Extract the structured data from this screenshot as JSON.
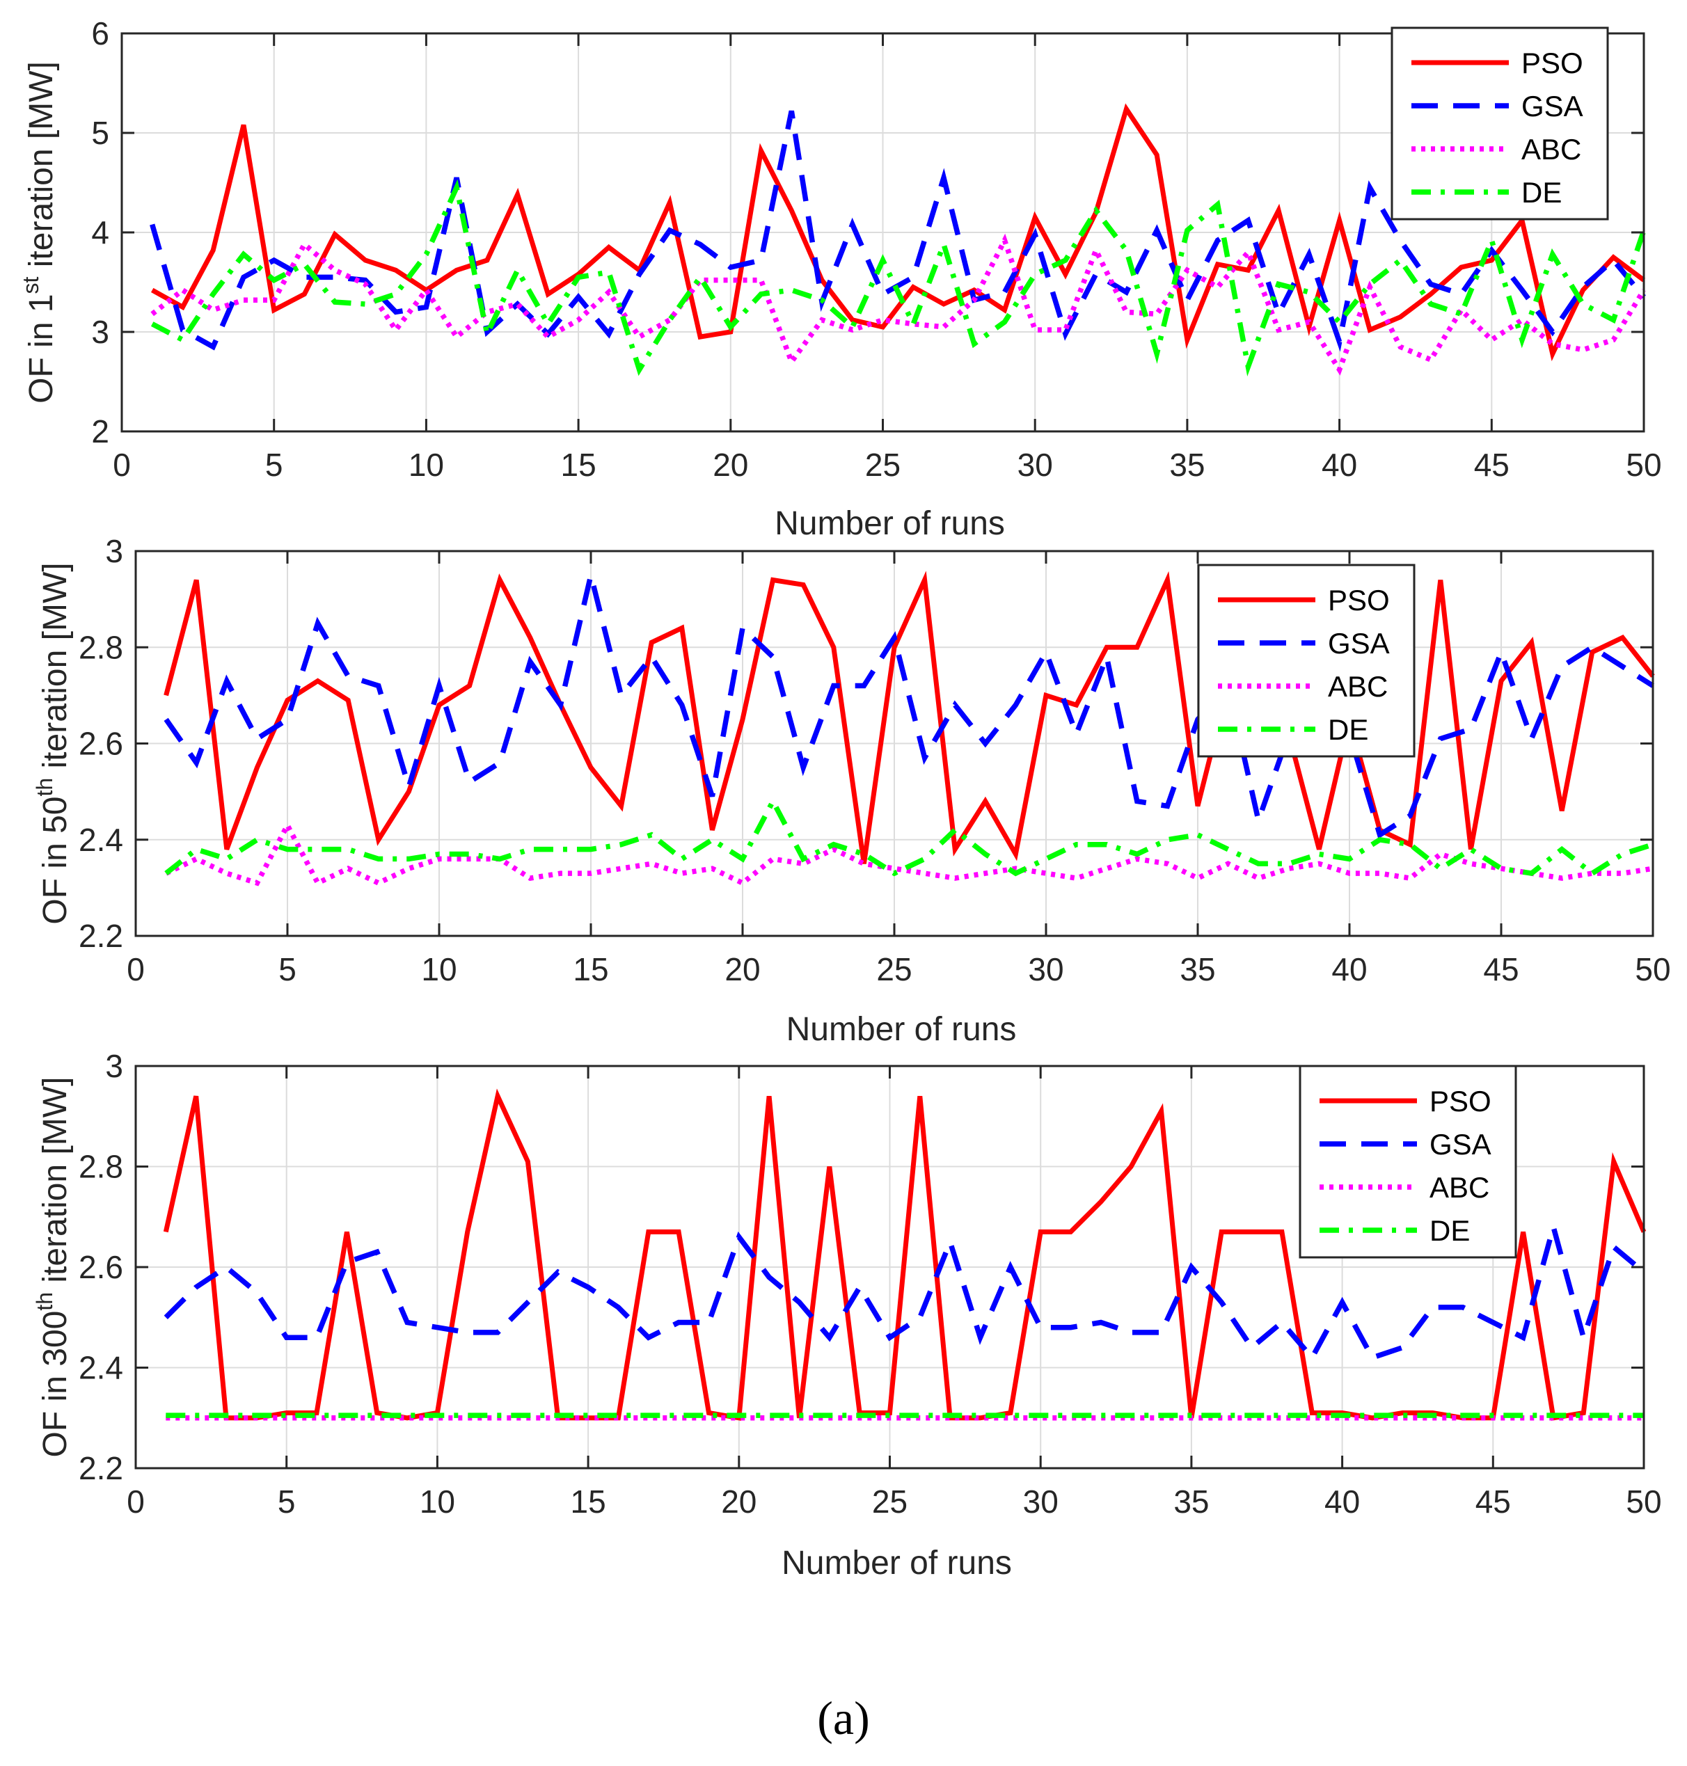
{
  "chart_data": [
    {
      "type": "line",
      "xlabel": "Number of runs",
      "ylabel": {
        "prefix": "OF in 1",
        "sup": "st",
        "suffix": " iteration [MW]"
      },
      "xlim": [
        0,
        50
      ],
      "ylim": [
        2,
        6
      ],
      "xticks": [
        0,
        5,
        10,
        15,
        20,
        25,
        30,
        35,
        40,
        45,
        50
      ],
      "yticks": [
        2,
        3,
        4,
        5,
        6
      ],
      "grid": true,
      "legend_position": "top-right",
      "series": [
        {
          "name": "PSO",
          "color": "#ff0000",
          "style": "solid",
          "values": [
            3.42,
            3.25,
            3.82,
            5.08,
            3.22,
            3.38,
            3.98,
            3.72,
            3.62,
            3.42,
            3.62,
            3.72,
            4.38,
            3.38,
            3.58,
            3.85,
            3.62,
            4.3,
            2.95,
            3.0,
            4.82,
            4.22,
            3.52,
            3.12,
            3.05,
            3.45,
            3.28,
            3.42,
            3.22,
            4.15,
            3.58,
            4.2,
            5.24,
            4.78,
            2.92,
            3.68,
            3.62,
            4.22,
            3.05,
            4.12,
            3.02,
            3.15,
            3.38,
            3.65,
            3.72,
            4.12,
            2.78,
            3.42,
            3.75,
            3.52
          ]
        },
        {
          "name": "GSA",
          "color": "#0000ff",
          "style": "dashed",
          "values": [
            4.08,
            3.02,
            2.85,
            3.55,
            3.72,
            3.55,
            3.55,
            3.52,
            3.2,
            3.25,
            4.55,
            3.0,
            3.28,
            2.98,
            3.35,
            2.98,
            3.58,
            4.02,
            3.88,
            3.65,
            3.72,
            5.22,
            3.3,
            4.08,
            3.38,
            3.55,
            4.55,
            3.32,
            3.4,
            3.98,
            2.98,
            3.58,
            3.4,
            4.02,
            3.32,
            3.92,
            4.12,
            3.18,
            3.78,
            2.9,
            4.45,
            3.92,
            3.48,
            3.38,
            3.82,
            3.42,
            3.0,
            3.45,
            3.72,
            3.35
          ]
        },
        {
          "name": "ABC",
          "color": "#ff00ff",
          "style": "dotted",
          "values": [
            3.18,
            3.42,
            3.22,
            3.32,
            3.32,
            3.88,
            3.62,
            3.48,
            3.02,
            3.42,
            2.95,
            3.2,
            3.28,
            2.95,
            3.12,
            3.4,
            2.95,
            3.12,
            3.52,
            3.52,
            3.52,
            2.7,
            3.12,
            3.02,
            3.12,
            3.08,
            3.05,
            3.32,
            3.92,
            3.02,
            3.02,
            3.82,
            3.2,
            3.18,
            3.62,
            3.45,
            3.8,
            3.02,
            3.1,
            2.62,
            3.45,
            2.85,
            2.72,
            3.22,
            2.92,
            3.12,
            2.88,
            2.82,
            2.92,
            3.42
          ]
        },
        {
          "name": "DE",
          "color": "#00ff00",
          "style": "dashdot",
          "values": [
            3.08,
            2.92,
            3.38,
            3.78,
            3.52,
            3.68,
            3.3,
            3.28,
            3.38,
            3.78,
            4.45,
            2.98,
            3.62,
            3.08,
            3.55,
            3.6,
            2.62,
            3.12,
            3.55,
            3.05,
            3.38,
            3.42,
            3.32,
            3.05,
            3.72,
            3.08,
            3.88,
            2.88,
            3.1,
            3.58,
            3.72,
            4.22,
            3.82,
            2.78,
            4.02,
            4.28,
            2.65,
            3.48,
            3.4,
            3.1,
            3.48,
            3.72,
            3.28,
            3.18,
            3.92,
            2.92,
            3.78,
            3.28,
            3.12,
            4.02
          ]
        }
      ]
    },
    {
      "type": "line",
      "xlabel": "Number of runs",
      "ylabel": {
        "prefix": "OF in 50",
        "sup": "th",
        "suffix": " iteration [MW]"
      },
      "xlim": [
        0,
        50
      ],
      "ylim": [
        2.2,
        3
      ],
      "xticks": [
        0,
        5,
        10,
        15,
        20,
        25,
        30,
        35,
        40,
        45,
        50
      ],
      "yticks": [
        2.2,
        2.4,
        2.6,
        2.8,
        3
      ],
      "grid": true,
      "legend_position": "top-right",
      "series": [
        {
          "name": "PSO",
          "color": "#ff0000",
          "style": "solid",
          "values": [
            2.7,
            2.94,
            2.38,
            2.55,
            2.69,
            2.73,
            2.69,
            2.4,
            2.5,
            2.68,
            2.72,
            2.94,
            2.82,
            2.68,
            2.55,
            2.47,
            2.81,
            2.84,
            2.42,
            2.65,
            2.94,
            2.93,
            2.8,
            2.35,
            2.8,
            2.94,
            2.38,
            2.48,
            2.37,
            2.7,
            2.68,
            2.8,
            2.8,
            2.94,
            2.47,
            2.72,
            2.65,
            2.62,
            2.38,
            2.65,
            2.42,
            2.39,
            2.94,
            2.38,
            2.73,
            2.81,
            2.46,
            2.79,
            2.82,
            2.74
          ]
        },
        {
          "name": "GSA",
          "color": "#0000ff",
          "style": "dashed",
          "values": [
            2.65,
            2.56,
            2.73,
            2.61,
            2.65,
            2.85,
            2.74,
            2.72,
            2.51,
            2.72,
            2.52,
            2.56,
            2.77,
            2.68,
            2.95,
            2.7,
            2.78,
            2.68,
            2.49,
            2.84,
            2.78,
            2.55,
            2.72,
            2.72,
            2.82,
            2.57,
            2.68,
            2.6,
            2.68,
            2.79,
            2.62,
            2.78,
            2.48,
            2.47,
            2.65,
            2.72,
            2.44,
            2.62,
            2.72,
            2.62,
            2.41,
            2.45,
            2.61,
            2.63,
            2.79,
            2.61,
            2.76,
            2.8,
            2.76,
            2.72
          ]
        },
        {
          "name": "ABC",
          "color": "#ff00ff",
          "style": "dotted",
          "values": [
            2.33,
            2.36,
            2.33,
            2.31,
            2.43,
            2.31,
            2.34,
            2.31,
            2.34,
            2.36,
            2.36,
            2.36,
            2.32,
            2.33,
            2.33,
            2.34,
            2.35,
            2.33,
            2.34,
            2.31,
            2.36,
            2.35,
            2.38,
            2.35,
            2.34,
            2.33,
            2.32,
            2.33,
            2.34,
            2.33,
            2.32,
            2.34,
            2.36,
            2.35,
            2.32,
            2.35,
            2.32,
            2.34,
            2.35,
            2.33,
            2.33,
            2.32,
            2.37,
            2.35,
            2.34,
            2.33,
            2.32,
            2.33,
            2.33,
            2.34
          ]
        },
        {
          "name": "DE",
          "color": "#00ff00",
          "style": "dashdot",
          "values": [
            2.33,
            2.38,
            2.36,
            2.4,
            2.38,
            2.38,
            2.38,
            2.36,
            2.36,
            2.37,
            2.37,
            2.36,
            2.38,
            2.38,
            2.38,
            2.39,
            2.41,
            2.36,
            2.4,
            2.36,
            2.48,
            2.36,
            2.39,
            2.37,
            2.33,
            2.36,
            2.42,
            2.37,
            2.33,
            2.36,
            2.39,
            2.39,
            2.37,
            2.4,
            2.41,
            2.38,
            2.35,
            2.35,
            2.37,
            2.36,
            2.4,
            2.39,
            2.34,
            2.38,
            2.34,
            2.33,
            2.38,
            2.33,
            2.37,
            2.39
          ]
        }
      ]
    },
    {
      "type": "line",
      "xlabel": "Number of runs",
      "ylabel": {
        "prefix": "OF in 300",
        "sup": "th",
        "suffix": " iteration [MW]"
      },
      "xlim": [
        0,
        50
      ],
      "ylim": [
        2.2,
        3
      ],
      "xticks": [
        0,
        5,
        10,
        15,
        20,
        25,
        30,
        35,
        40,
        45,
        50
      ],
      "yticks": [
        2.2,
        2.4,
        2.6,
        2.8,
        3
      ],
      "grid": true,
      "legend_position": "top-right",
      "series": [
        {
          "name": "PSO",
          "color": "#ff0000",
          "style": "solid",
          "values": [
            2.67,
            2.94,
            2.3,
            2.3,
            2.31,
            2.31,
            2.67,
            2.31,
            2.3,
            2.31,
            2.67,
            2.94,
            2.81,
            2.3,
            2.3,
            2.3,
            2.67,
            2.67,
            2.31,
            2.3,
            2.94,
            2.3,
            2.8,
            2.31,
            2.31,
            2.94,
            2.3,
            2.3,
            2.31,
            2.67,
            2.67,
            2.73,
            2.8,
            2.91,
            2.3,
            2.67,
            2.67,
            2.67,
            2.31,
            2.31,
            2.3,
            2.31,
            2.31,
            2.3,
            2.3,
            2.67,
            2.3,
            2.31,
            2.81,
            2.67
          ]
        },
        {
          "name": "GSA",
          "color": "#0000ff",
          "style": "dashed",
          "values": [
            2.5,
            2.56,
            2.6,
            2.55,
            2.46,
            2.46,
            2.61,
            2.63,
            2.49,
            2.48,
            2.47,
            2.47,
            2.53,
            2.59,
            2.56,
            2.52,
            2.46,
            2.49,
            2.49,
            2.66,
            2.58,
            2.53,
            2.46,
            2.56,
            2.46,
            2.5,
            2.65,
            2.46,
            2.6,
            2.48,
            2.48,
            2.49,
            2.47,
            2.47,
            2.6,
            2.53,
            2.44,
            2.49,
            2.42,
            2.53,
            2.42,
            2.44,
            2.52,
            2.52,
            2.49,
            2.46,
            2.68,
            2.46,
            2.64,
            2.59
          ]
        },
        {
          "name": "ABC",
          "color": "#ff00ff",
          "style": "dotted",
          "values": [
            2.3,
            2.3,
            2.3,
            2.3,
            2.3,
            2.3,
            2.3,
            2.3,
            2.3,
            2.3,
            2.3,
            2.3,
            2.3,
            2.3,
            2.3,
            2.3,
            2.3,
            2.3,
            2.3,
            2.3,
            2.3,
            2.3,
            2.3,
            2.3,
            2.3,
            2.3,
            2.3,
            2.3,
            2.3,
            2.3,
            2.3,
            2.3,
            2.3,
            2.3,
            2.3,
            2.3,
            2.3,
            2.3,
            2.3,
            2.3,
            2.3,
            2.3,
            2.3,
            2.3,
            2.3,
            2.3,
            2.3,
            2.3,
            2.3,
            2.3
          ]
        },
        {
          "name": "DE",
          "color": "#00ff00",
          "style": "dashdot",
          "values": [
            2.305,
            2.305,
            2.305,
            2.305,
            2.305,
            2.305,
            2.305,
            2.305,
            2.305,
            2.305,
            2.305,
            2.305,
            2.305,
            2.305,
            2.305,
            2.305,
            2.305,
            2.305,
            2.305,
            2.305,
            2.305,
            2.305,
            2.305,
            2.305,
            2.305,
            2.305,
            2.305,
            2.305,
            2.305,
            2.305,
            2.305,
            2.305,
            2.305,
            2.305,
            2.305,
            2.305,
            2.305,
            2.305,
            2.305,
            2.305,
            2.305,
            2.305,
            2.305,
            2.305,
            2.305,
            2.305,
            2.305,
            2.305,
            2.305,
            2.305
          ]
        }
      ]
    }
  ],
  "caption": "(a)"
}
